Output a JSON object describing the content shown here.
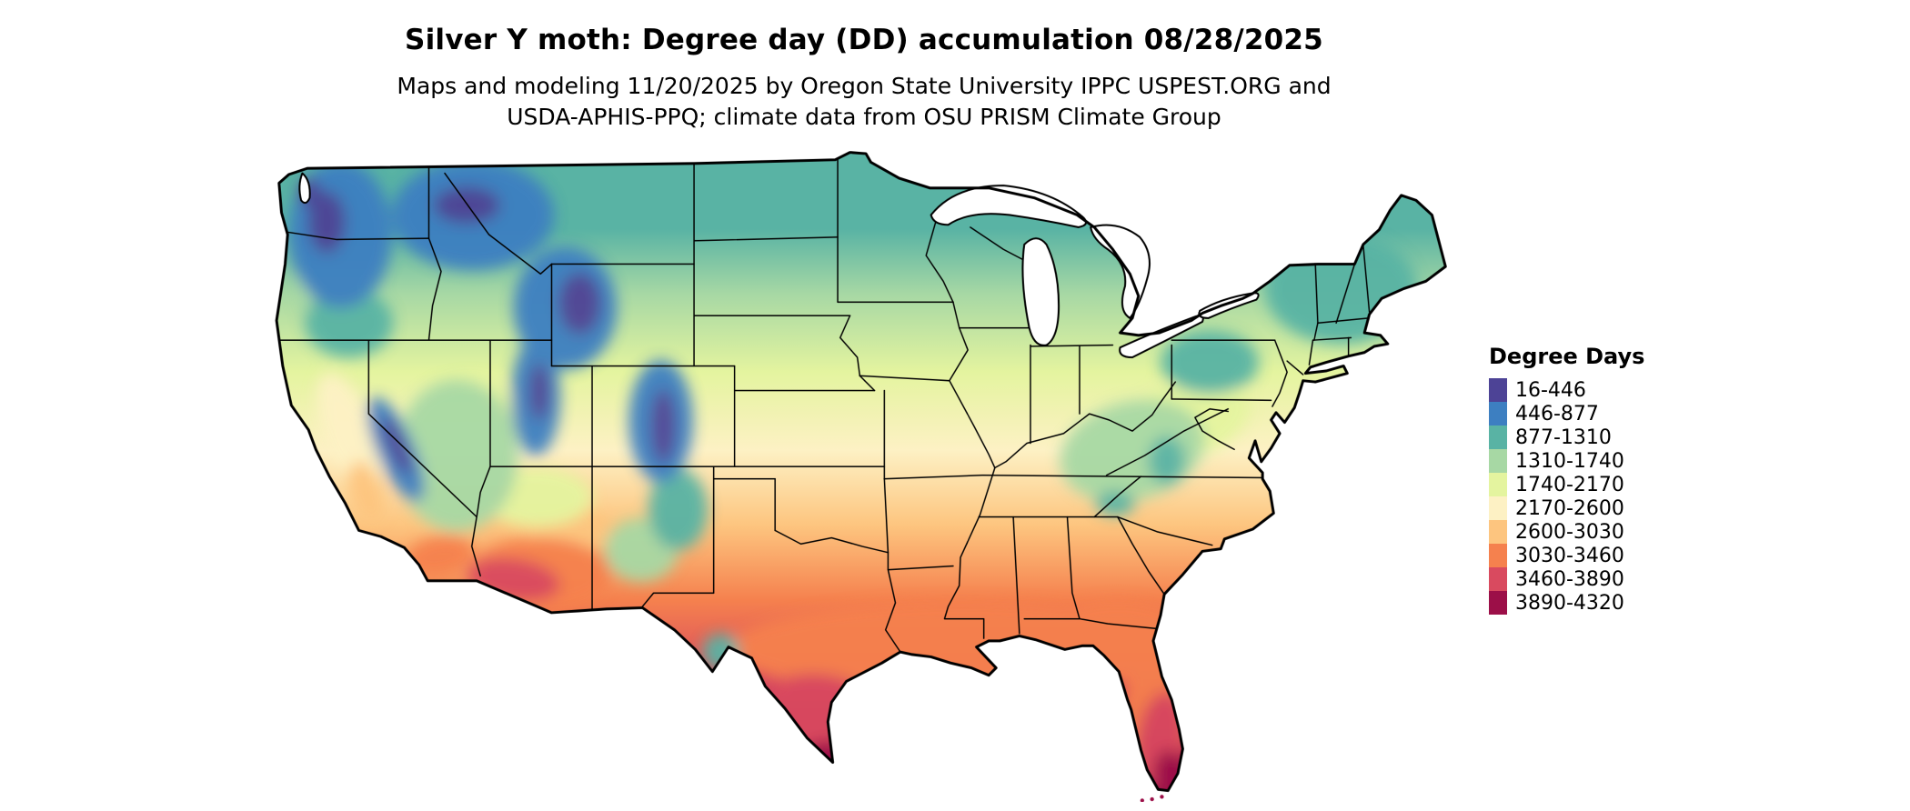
{
  "title": "Silver Y moth: Degree day (DD) accumulation 08/28/2025",
  "subtitle": {
    "line1": "Maps and modeling 11/20/2025 by Oregon State University IPPC USPEST.ORG and",
    "line2": "USDA-APHIS-PPQ; climate data from OSU PRISM Climate Group"
  },
  "map": {
    "region": "Continental United States",
    "type": "degree-day accumulation choropleth raster with state boundaries",
    "outline_color": "#000000",
    "water_color": "#ffffff"
  },
  "legend": {
    "title": "Degree Days",
    "entries": [
      {
        "label": "16-446",
        "color": "#4d4396"
      },
      {
        "label": "446-877",
        "color": "#3d7fc1"
      },
      {
        "label": "877-1310",
        "color": "#59b3a4"
      },
      {
        "label": "1310-1740",
        "color": "#a7d8a4"
      },
      {
        "label": "1740-2170",
        "color": "#e4f49f"
      },
      {
        "label": "2170-2600",
        "color": "#fdf1c4"
      },
      {
        "label": "2600-3030",
        "color": "#fdc57f"
      },
      {
        "label": "3030-3460",
        "color": "#f5814e"
      },
      {
        "label": "3460-3890",
        "color": "#d94a5f"
      },
      {
        "label": "3890-4320",
        "color": "#9c0f48"
      }
    ]
  }
}
